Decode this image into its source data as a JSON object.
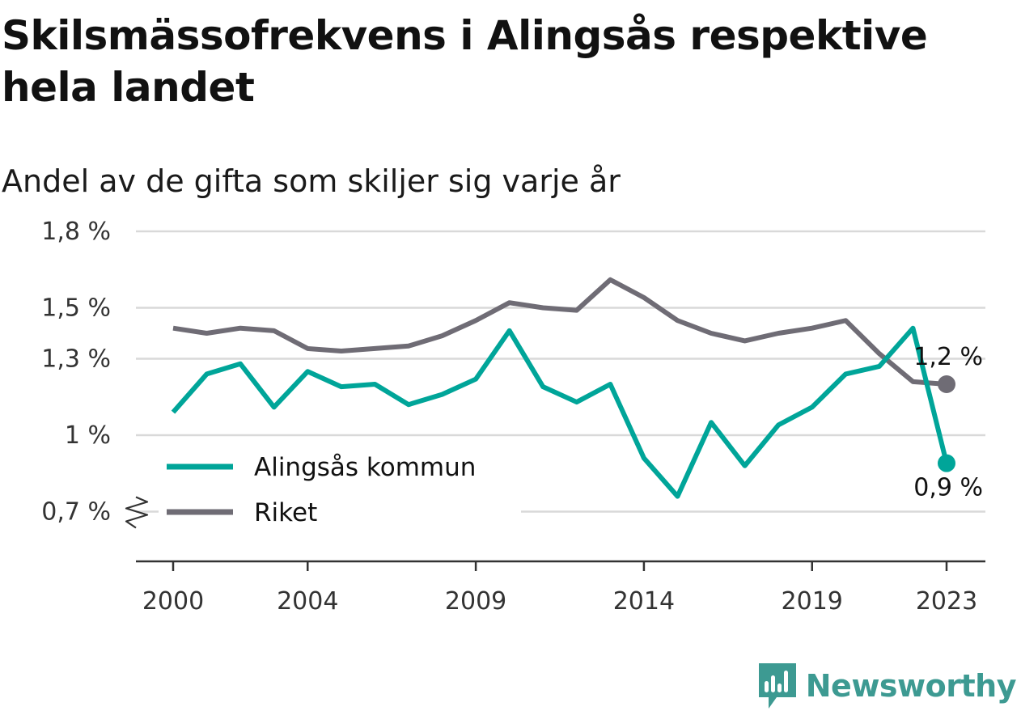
{
  "title": "Skilsmässofrekvens i Alingsås respektive hela landet",
  "subtitle": "Andel av de gifta som skiljer sig varje år",
  "brand": {
    "name": "Newsworthy",
    "icon": "newsworthy-logo-icon",
    "color": "#3d9a92"
  },
  "chart_data": {
    "type": "line",
    "x": [
      2000,
      2001,
      2002,
      2003,
      2004,
      2005,
      2006,
      2007,
      2008,
      2009,
      2010,
      2011,
      2012,
      2013,
      2014,
      2015,
      2016,
      2017,
      2018,
      2019,
      2020,
      2021,
      2022,
      2023
    ],
    "x_tick_values": [
      2000,
      2004,
      2009,
      2014,
      2019,
      2023
    ],
    "x_tick_labels": [
      "2000",
      "2004",
      "2009",
      "2014",
      "2019",
      "2023"
    ],
    "y_tick_values": [
      0.7,
      1.0,
      1.3,
      1.5,
      1.8
    ],
    "y_tick_labels": [
      "0,7 %",
      "1 %",
      "1,3 %",
      "1,5 %",
      "1,8 %"
    ],
    "y_axis_break": true,
    "grid": true,
    "legend_placement": "bottom-left",
    "series": [
      {
        "name": "Alingsås kommun",
        "color": "#00a599",
        "values": [
          1.09,
          1.24,
          1.28,
          1.11,
          1.25,
          1.19,
          1.2,
          1.12,
          1.16,
          1.22,
          1.41,
          1.19,
          1.13,
          1.2,
          0.91,
          0.76,
          1.05,
          0.88,
          1.04,
          1.11,
          1.24,
          1.27,
          1.42,
          0.89
        ],
        "end_label": "0,9 %"
      },
      {
        "name": "Riket",
        "color": "#6f6c75",
        "values": [
          1.42,
          1.4,
          1.42,
          1.41,
          1.34,
          1.33,
          1.34,
          1.35,
          1.39,
          1.45,
          1.52,
          1.5,
          1.49,
          1.61,
          1.54,
          1.45,
          1.4,
          1.37,
          1.4,
          1.42,
          1.45,
          1.32,
          1.21,
          1.2
        ],
        "end_label": "1,2 %"
      }
    ]
  }
}
